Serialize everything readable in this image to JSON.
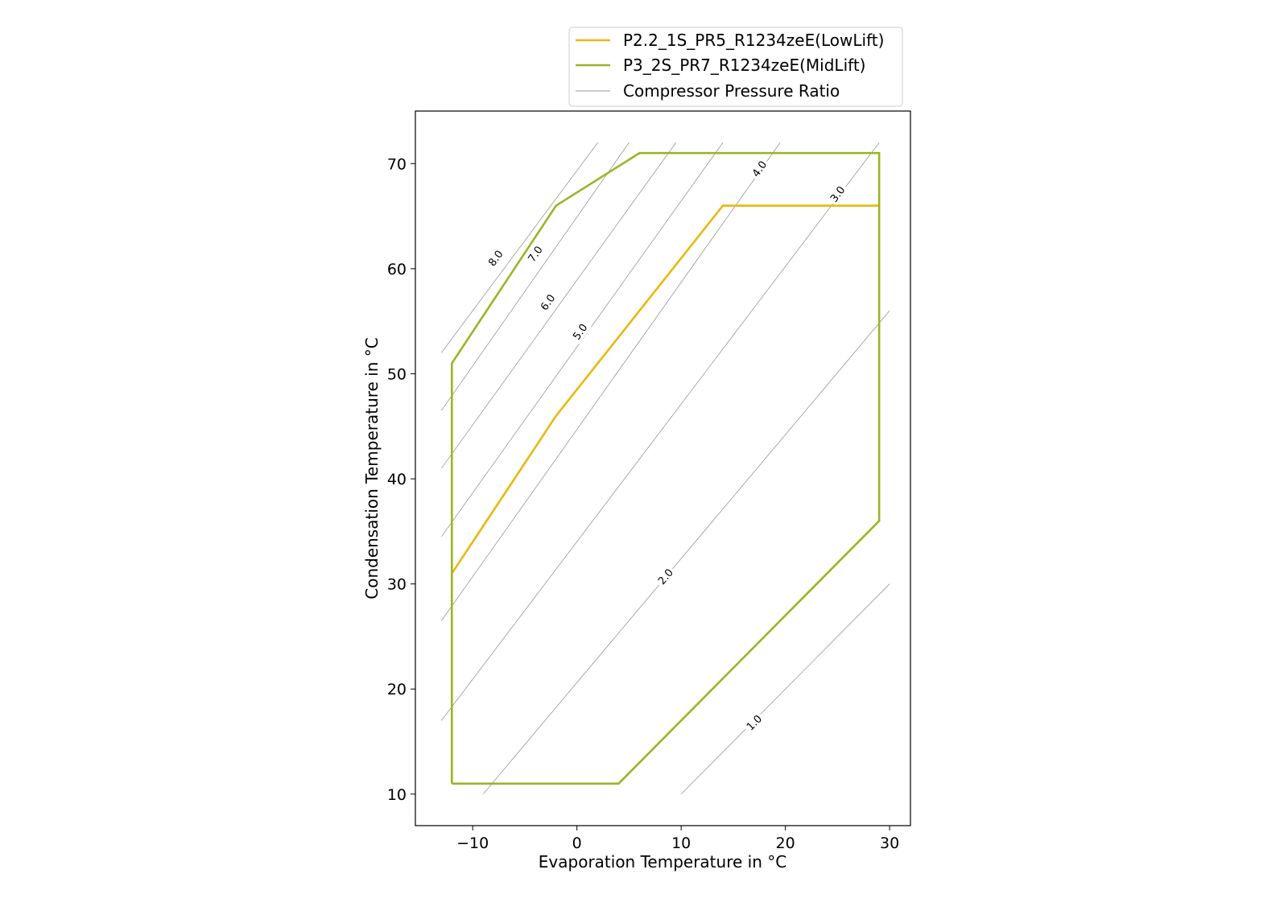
{
  "chart_data": {
    "type": "line",
    "title": "",
    "xlabel": "Evaporation Temperature in °C",
    "ylabel": "Condensation Temperature in °C",
    "xlim": [
      -15.5,
      32
    ],
    "ylim": [
      7,
      75
    ],
    "xticks": [
      -10,
      0,
      10,
      20,
      30
    ],
    "yticks": [
      10,
      20,
      30,
      40,
      50,
      60,
      70
    ],
    "xtick_labels": [
      "−10",
      "0",
      "10",
      "20",
      "30"
    ],
    "ytick_labels": [
      "10",
      "20",
      "30",
      "40",
      "50",
      "60",
      "70"
    ],
    "grid": false,
    "legend_position": "above plot, right",
    "series": [
      {
        "name": "P2.2_1S_PR5_R1234zeE(LowLift)",
        "color": "#e8b80f",
        "x": [
          -12,
          -2,
          14,
          29
        ],
        "y": [
          31,
          46,
          66,
          66
        ]
      },
      {
        "name": "P3_2S_PR7_R1234zeE(MidLift)",
        "color": "#98b626",
        "x": [
          -12,
          -12,
          -2,
          6,
          29,
          29,
          4,
          -12
        ],
        "y": [
          11,
          51,
          66,
          71,
          71,
          36,
          11,
          11
        ]
      }
    ],
    "reference_lines": {
      "name": "Compressor Pressure Ratio",
      "color": "#777777",
      "lines": [
        {
          "label": "8.0",
          "x": [
            -13,
            2
          ],
          "y": [
            52,
            72
          ]
        },
        {
          "label": "7.0",
          "x": [
            -13,
            5
          ],
          "y": [
            46.5,
            72
          ]
        },
        {
          "label": "6.0",
          "x": [
            -13,
            9.5
          ],
          "y": [
            41,
            72
          ]
        },
        {
          "label": "5.0",
          "x": [
            -13,
            14
          ],
          "y": [
            34.5,
            72
          ]
        },
        {
          "label": "4.0",
          "x": [
            -13,
            19.5
          ],
          "y": [
            26.5,
            72
          ]
        },
        {
          "label": "3.0",
          "x": [
            -13,
            29
          ],
          "y": [
            17,
            72
          ]
        },
        {
          "label": "2.0",
          "x": [
            -9,
            30
          ],
          "y": [
            10,
            56
          ]
        },
        {
          "label": "1.0",
          "x": [
            10,
            30
          ],
          "y": [
            10,
            30
          ]
        }
      ],
      "label_points": [
        {
          "label": "8.0",
          "x": -7.8,
          "y": 61
        },
        {
          "label": "7.0",
          "x": -4,
          "y": 61.4
        },
        {
          "label": "6.0",
          "x": -2.8,
          "y": 56.8
        },
        {
          "label": "5.0",
          "x": 0.3,
          "y": 54
        },
        {
          "label": "4.0",
          "x": 17.5,
          "y": 69.5
        },
        {
          "label": "3.0",
          "x": 25,
          "y": 67.1
        },
        {
          "label": "2.0",
          "x": 8.5,
          "y": 30.7
        },
        {
          "label": "1.0",
          "x": 17,
          "y": 16.8
        }
      ]
    }
  }
}
